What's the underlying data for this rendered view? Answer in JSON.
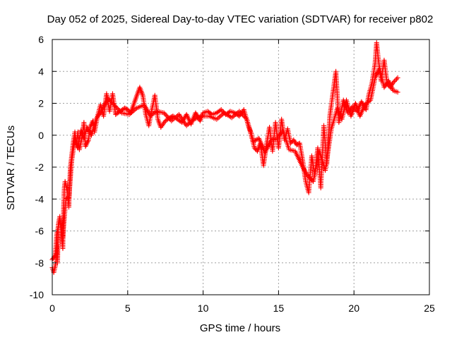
{
  "chart_data": {
    "type": "scatter",
    "title": "Day 052 of 2025, Sidereal Day-to-day VTEC variation (SDTVAR) for receiver p802",
    "xlabel": "GPS time / hours",
    "ylabel": "SDTVAR / TECUs",
    "xlim": [
      0,
      25
    ],
    "ylim": [
      -10,
      6
    ],
    "xticks": [
      0,
      5,
      10,
      15,
      20,
      25
    ],
    "yticks": [
      -10,
      -8,
      -6,
      -4,
      -2,
      0,
      2,
      4,
      6
    ],
    "grid": true,
    "legend": "none",
    "marker": "+",
    "color": "#ff0000",
    "series": [
      {
        "name": "SDTVAR",
        "trace": [
          [
            0.0,
            -8.3
          ],
          [
            0.1,
            -8.6
          ],
          [
            0.2,
            -8.2
          ],
          [
            0.25,
            -7.9
          ],
          [
            0.3,
            -6.9
          ],
          [
            0.35,
            -8.0
          ],
          [
            0.4,
            -5.6
          ],
          [
            0.5,
            -5.1
          ],
          [
            0.6,
            -6.2
          ],
          [
            0.7,
            -7.1
          ],
          [
            0.75,
            -4.6
          ],
          [
            0.8,
            -3.3
          ],
          [
            0.85,
            -2.9
          ],
          [
            1.0,
            -3.5
          ],
          [
            1.1,
            -4.5
          ],
          [
            1.2,
            -2.0
          ],
          [
            1.3,
            -1.2
          ],
          [
            1.4,
            -0.4
          ],
          [
            1.5,
            0.2
          ],
          [
            1.6,
            -0.6
          ],
          [
            1.7,
            0.2
          ],
          [
            1.8,
            -0.9
          ],
          [
            2.0,
            0.0
          ],
          [
            2.1,
            0.8
          ],
          [
            2.2,
            -0.7
          ],
          [
            2.4,
            -0.3
          ],
          [
            2.5,
            0.5
          ],
          [
            2.7,
            0.9
          ],
          [
            2.8,
            0.2
          ],
          [
            3.0,
            1.2
          ],
          [
            3.2,
            1.9
          ],
          [
            3.4,
            1.2
          ],
          [
            3.6,
            2.6
          ],
          [
            3.8,
            1.5
          ],
          [
            4.0,
            2.6
          ],
          [
            4.2,
            1.3
          ],
          [
            4.5,
            1.5
          ],
          [
            4.8,
            1.7
          ],
          [
            5.0,
            1.6
          ],
          [
            5.2,
            1.4
          ],
          [
            5.5,
            2.2
          ],
          [
            5.8,
            3.0
          ],
          [
            6.0,
            2.5
          ],
          [
            6.2,
            1.3
          ],
          [
            6.4,
            0.6
          ],
          [
            6.6,
            1.6
          ],
          [
            6.8,
            2.5
          ],
          [
            7.0,
            1.0
          ],
          [
            7.2,
            0.5
          ],
          [
            7.5,
            0.9
          ],
          [
            7.8,
            1.1
          ],
          [
            8.0,
            1.2
          ],
          [
            8.3,
            1.0
          ],
          [
            8.6,
            0.8
          ],
          [
            8.9,
            1.3
          ],
          [
            9.2,
            0.7
          ],
          [
            9.5,
            1.4
          ],
          [
            9.8,
            0.9
          ],
          [
            10.0,
            1.4
          ],
          [
            10.3,
            1.5
          ],
          [
            10.6,
            1.3
          ],
          [
            10.9,
            1.4
          ],
          [
            11.2,
            1.6
          ],
          [
            11.5,
            1.3
          ],
          [
            11.8,
            1.5
          ],
          [
            12.1,
            1.4
          ],
          [
            12.4,
            1.2
          ],
          [
            12.7,
            1.6
          ],
          [
            13.0,
            0.6
          ],
          [
            13.2,
            0.1
          ],
          [
            13.4,
            -0.8
          ],
          [
            13.6,
            -1.0
          ],
          [
            13.8,
            -0.5
          ],
          [
            14.0,
            -1.9
          ],
          [
            14.2,
            -0.6
          ],
          [
            14.4,
            0.5
          ],
          [
            14.6,
            -1.0
          ],
          [
            14.8,
            0.8
          ],
          [
            15.0,
            -0.8
          ],
          [
            15.2,
            1.0
          ],
          [
            15.4,
            -0.3
          ],
          [
            15.6,
            0.4
          ],
          [
            15.8,
            -0.5
          ],
          [
            16.0,
            -0.3
          ],
          [
            16.2,
            -0.6
          ],
          [
            16.4,
            -0.5
          ],
          [
            16.6,
            -1.6
          ],
          [
            16.8,
            -2.9
          ],
          [
            17.0,
            -3.6
          ],
          [
            17.2,
            -1.3
          ],
          [
            17.4,
            -2.5
          ],
          [
            17.6,
            -0.8
          ],
          [
            17.8,
            -3.3
          ],
          [
            18.0,
            0.6
          ],
          [
            18.2,
            -1.8
          ],
          [
            18.4,
            1.2
          ],
          [
            18.6,
            2.6
          ],
          [
            18.8,
            4.0
          ],
          [
            19.0,
            0.8
          ],
          [
            19.3,
            2.2
          ],
          [
            19.6,
            1.4
          ],
          [
            19.9,
            1.8
          ],
          [
            20.2,
            1.5
          ],
          [
            20.5,
            2.1
          ],
          [
            20.8,
            1.6
          ],
          [
            21.0,
            2.6
          ],
          [
            21.2,
            3.3
          ],
          [
            21.4,
            4.5
          ],
          [
            21.5,
            5.8
          ],
          [
            21.6,
            4.9
          ],
          [
            21.8,
            3.4
          ],
          [
            22.0,
            4.7
          ],
          [
            22.2,
            3.2
          ],
          [
            22.4,
            3.0
          ],
          [
            22.6,
            3.3
          ],
          [
            22.9,
            3.6
          ]
        ],
        "band": [
          [
            0.0,
            -7.8
          ],
          [
            0.2,
            -7.5
          ],
          [
            0.3,
            -6.2
          ],
          [
            0.5,
            -5.3
          ],
          [
            0.7,
            -6.4
          ],
          [
            0.9,
            -4.0
          ],
          [
            1.1,
            -3.9
          ],
          [
            1.3,
            -1.5
          ],
          [
            1.5,
            -0.3
          ],
          [
            1.7,
            -0.8
          ],
          [
            1.9,
            0.3
          ],
          [
            2.1,
            -0.2
          ],
          [
            2.3,
            0.5
          ],
          [
            2.6,
            0.0
          ],
          [
            2.9,
            1.0
          ],
          [
            3.3,
            1.6
          ],
          [
            3.7,
            2.3
          ],
          [
            4.1,
            1.9
          ],
          [
            4.6,
            1.4
          ],
          [
            5.1,
            1.3
          ],
          [
            5.6,
            1.7
          ],
          [
            6.1,
            1.9
          ],
          [
            6.5,
            1.2
          ],
          [
            6.9,
            1.5
          ],
          [
            7.4,
            1.4
          ],
          [
            7.9,
            0.9
          ],
          [
            8.4,
            1.3
          ],
          [
            8.9,
            0.6
          ],
          [
            9.4,
            1.0
          ],
          [
            9.9,
            1.2
          ],
          [
            10.4,
            1.2
          ],
          [
            10.9,
            1.0
          ],
          [
            11.4,
            1.4
          ],
          [
            11.9,
            1.1
          ],
          [
            12.4,
            1.5
          ],
          [
            12.9,
            1.0
          ],
          [
            13.3,
            -0.4
          ],
          [
            13.7,
            -0.2
          ],
          [
            14.1,
            -1.1
          ],
          [
            14.5,
            -0.3
          ],
          [
            14.9,
            -0.2
          ],
          [
            15.3,
            0.3
          ],
          [
            15.7,
            -0.9
          ],
          [
            16.1,
            -1.0
          ],
          [
            16.5,
            -1.8
          ],
          [
            16.9,
            -2.5
          ],
          [
            17.3,
            -2.9
          ],
          [
            17.7,
            -1.0
          ],
          [
            18.1,
            -2.2
          ],
          [
            18.5,
            0.4
          ],
          [
            18.9,
            1.7
          ],
          [
            19.2,
            1.0
          ],
          [
            19.5,
            2.2
          ],
          [
            19.8,
            1.2
          ],
          [
            20.1,
            2.0
          ],
          [
            20.4,
            1.2
          ],
          [
            20.7,
            1.9
          ],
          [
            21.1,
            2.2
          ],
          [
            21.4,
            3.6
          ],
          [
            21.7,
            4.2
          ],
          [
            22.0,
            3.0
          ],
          [
            22.3,
            3.4
          ],
          [
            22.6,
            2.8
          ],
          [
            22.9,
            2.7
          ]
        ]
      }
    ]
  }
}
